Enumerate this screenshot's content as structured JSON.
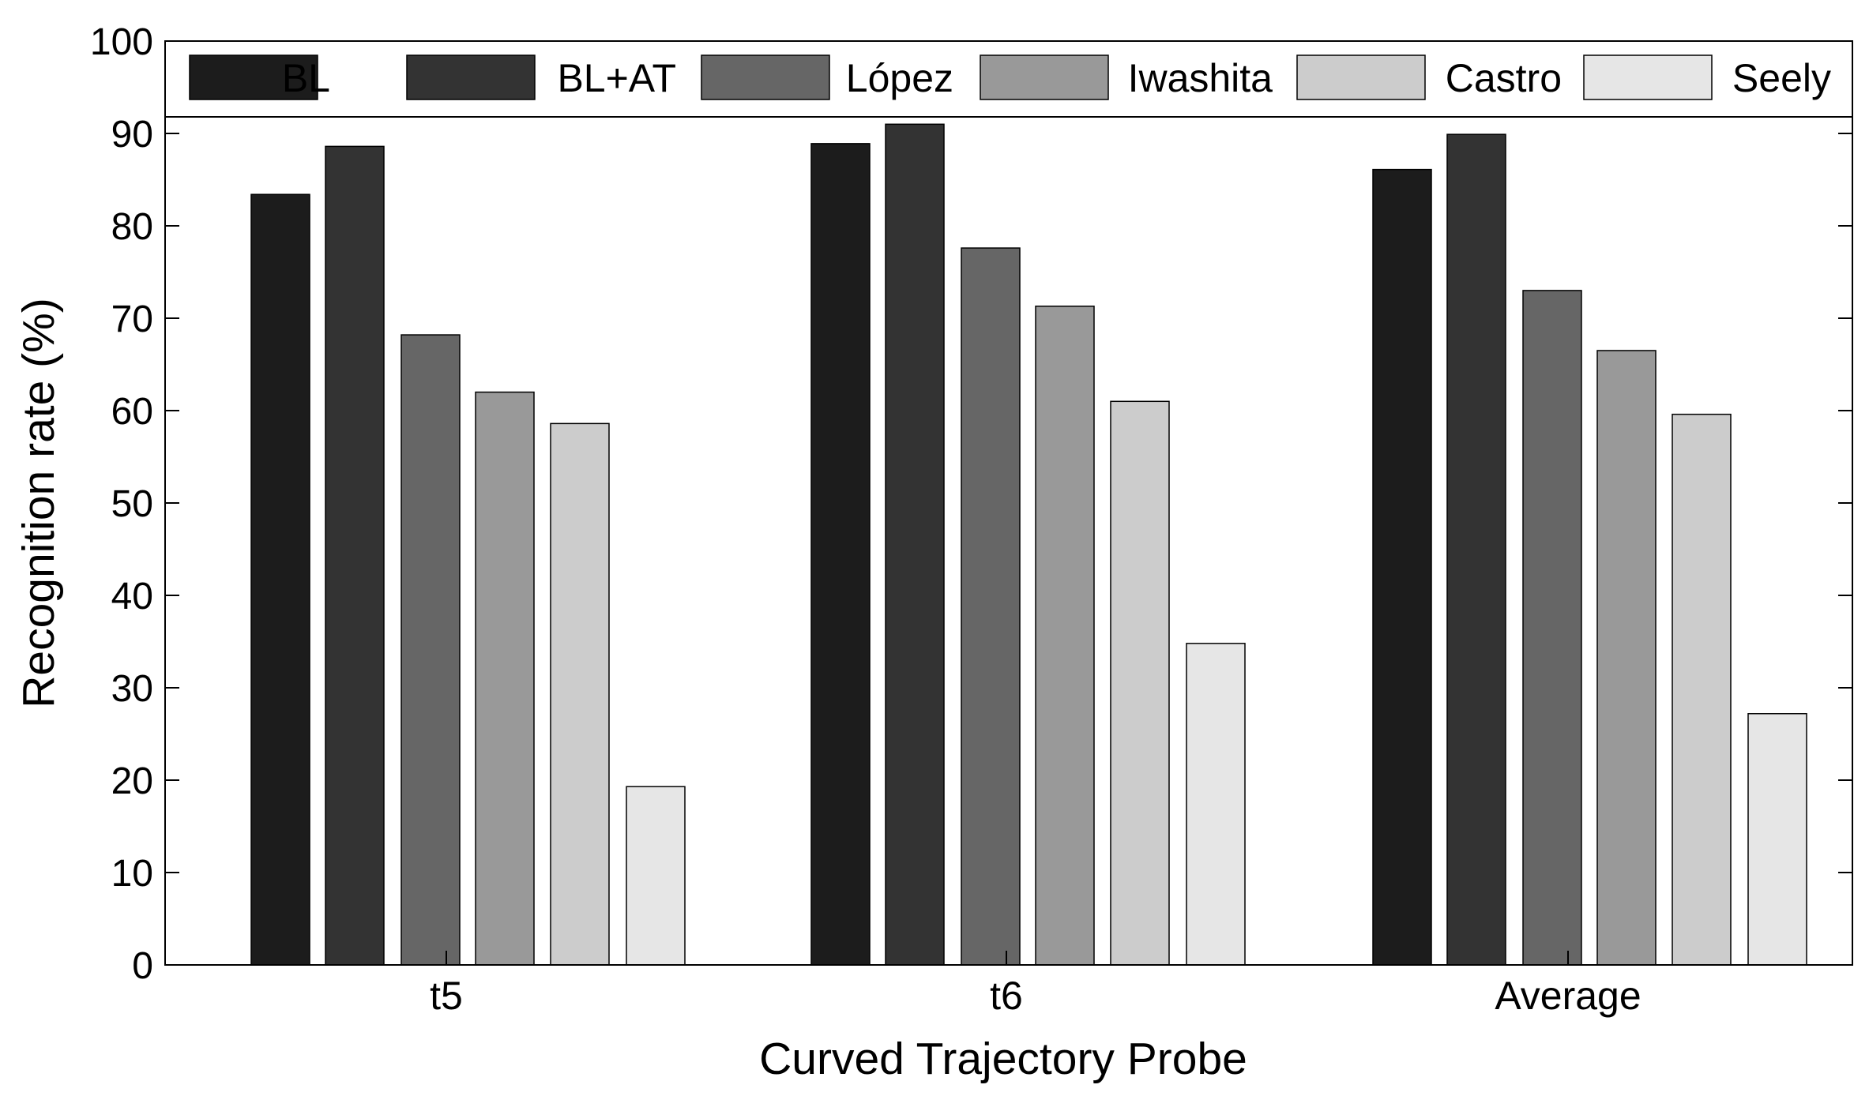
{
  "chart_data": {
    "type": "bar",
    "title": "",
    "xlabel": "Curved Trajectory Probe",
    "ylabel": "Recognition rate (%)",
    "ylim": [
      0,
      100
    ],
    "yticks": [
      "0",
      "10",
      "20",
      "30",
      "40",
      "50",
      "60",
      "70",
      "80",
      "90",
      "100"
    ],
    "grid": false,
    "legend_position": "top",
    "categories": [
      "t5",
      "t6",
      "Average"
    ],
    "series": [
      {
        "name": "BL",
        "color": "#1c1c1c",
        "values": [
          83.4,
          88.9,
          86.1
        ]
      },
      {
        "name": "BL+AT",
        "color": "#333333",
        "values": [
          88.6,
          91.0,
          89.9
        ]
      },
      {
        "name": "López",
        "color": "#666666",
        "values": [
          68.2,
          77.6,
          73.0
        ]
      },
      {
        "name": "Iwashita",
        "color": "#999999",
        "values": [
          62.0,
          71.3,
          66.5
        ]
      },
      {
        "name": "Castro",
        "color": "#cccccc",
        "values": [
          58.6,
          61.0,
          59.6
        ]
      },
      {
        "name": "Seely",
        "color": "#e6e6e6",
        "values": [
          19.3,
          34.8,
          27.2
        ]
      }
    ]
  }
}
